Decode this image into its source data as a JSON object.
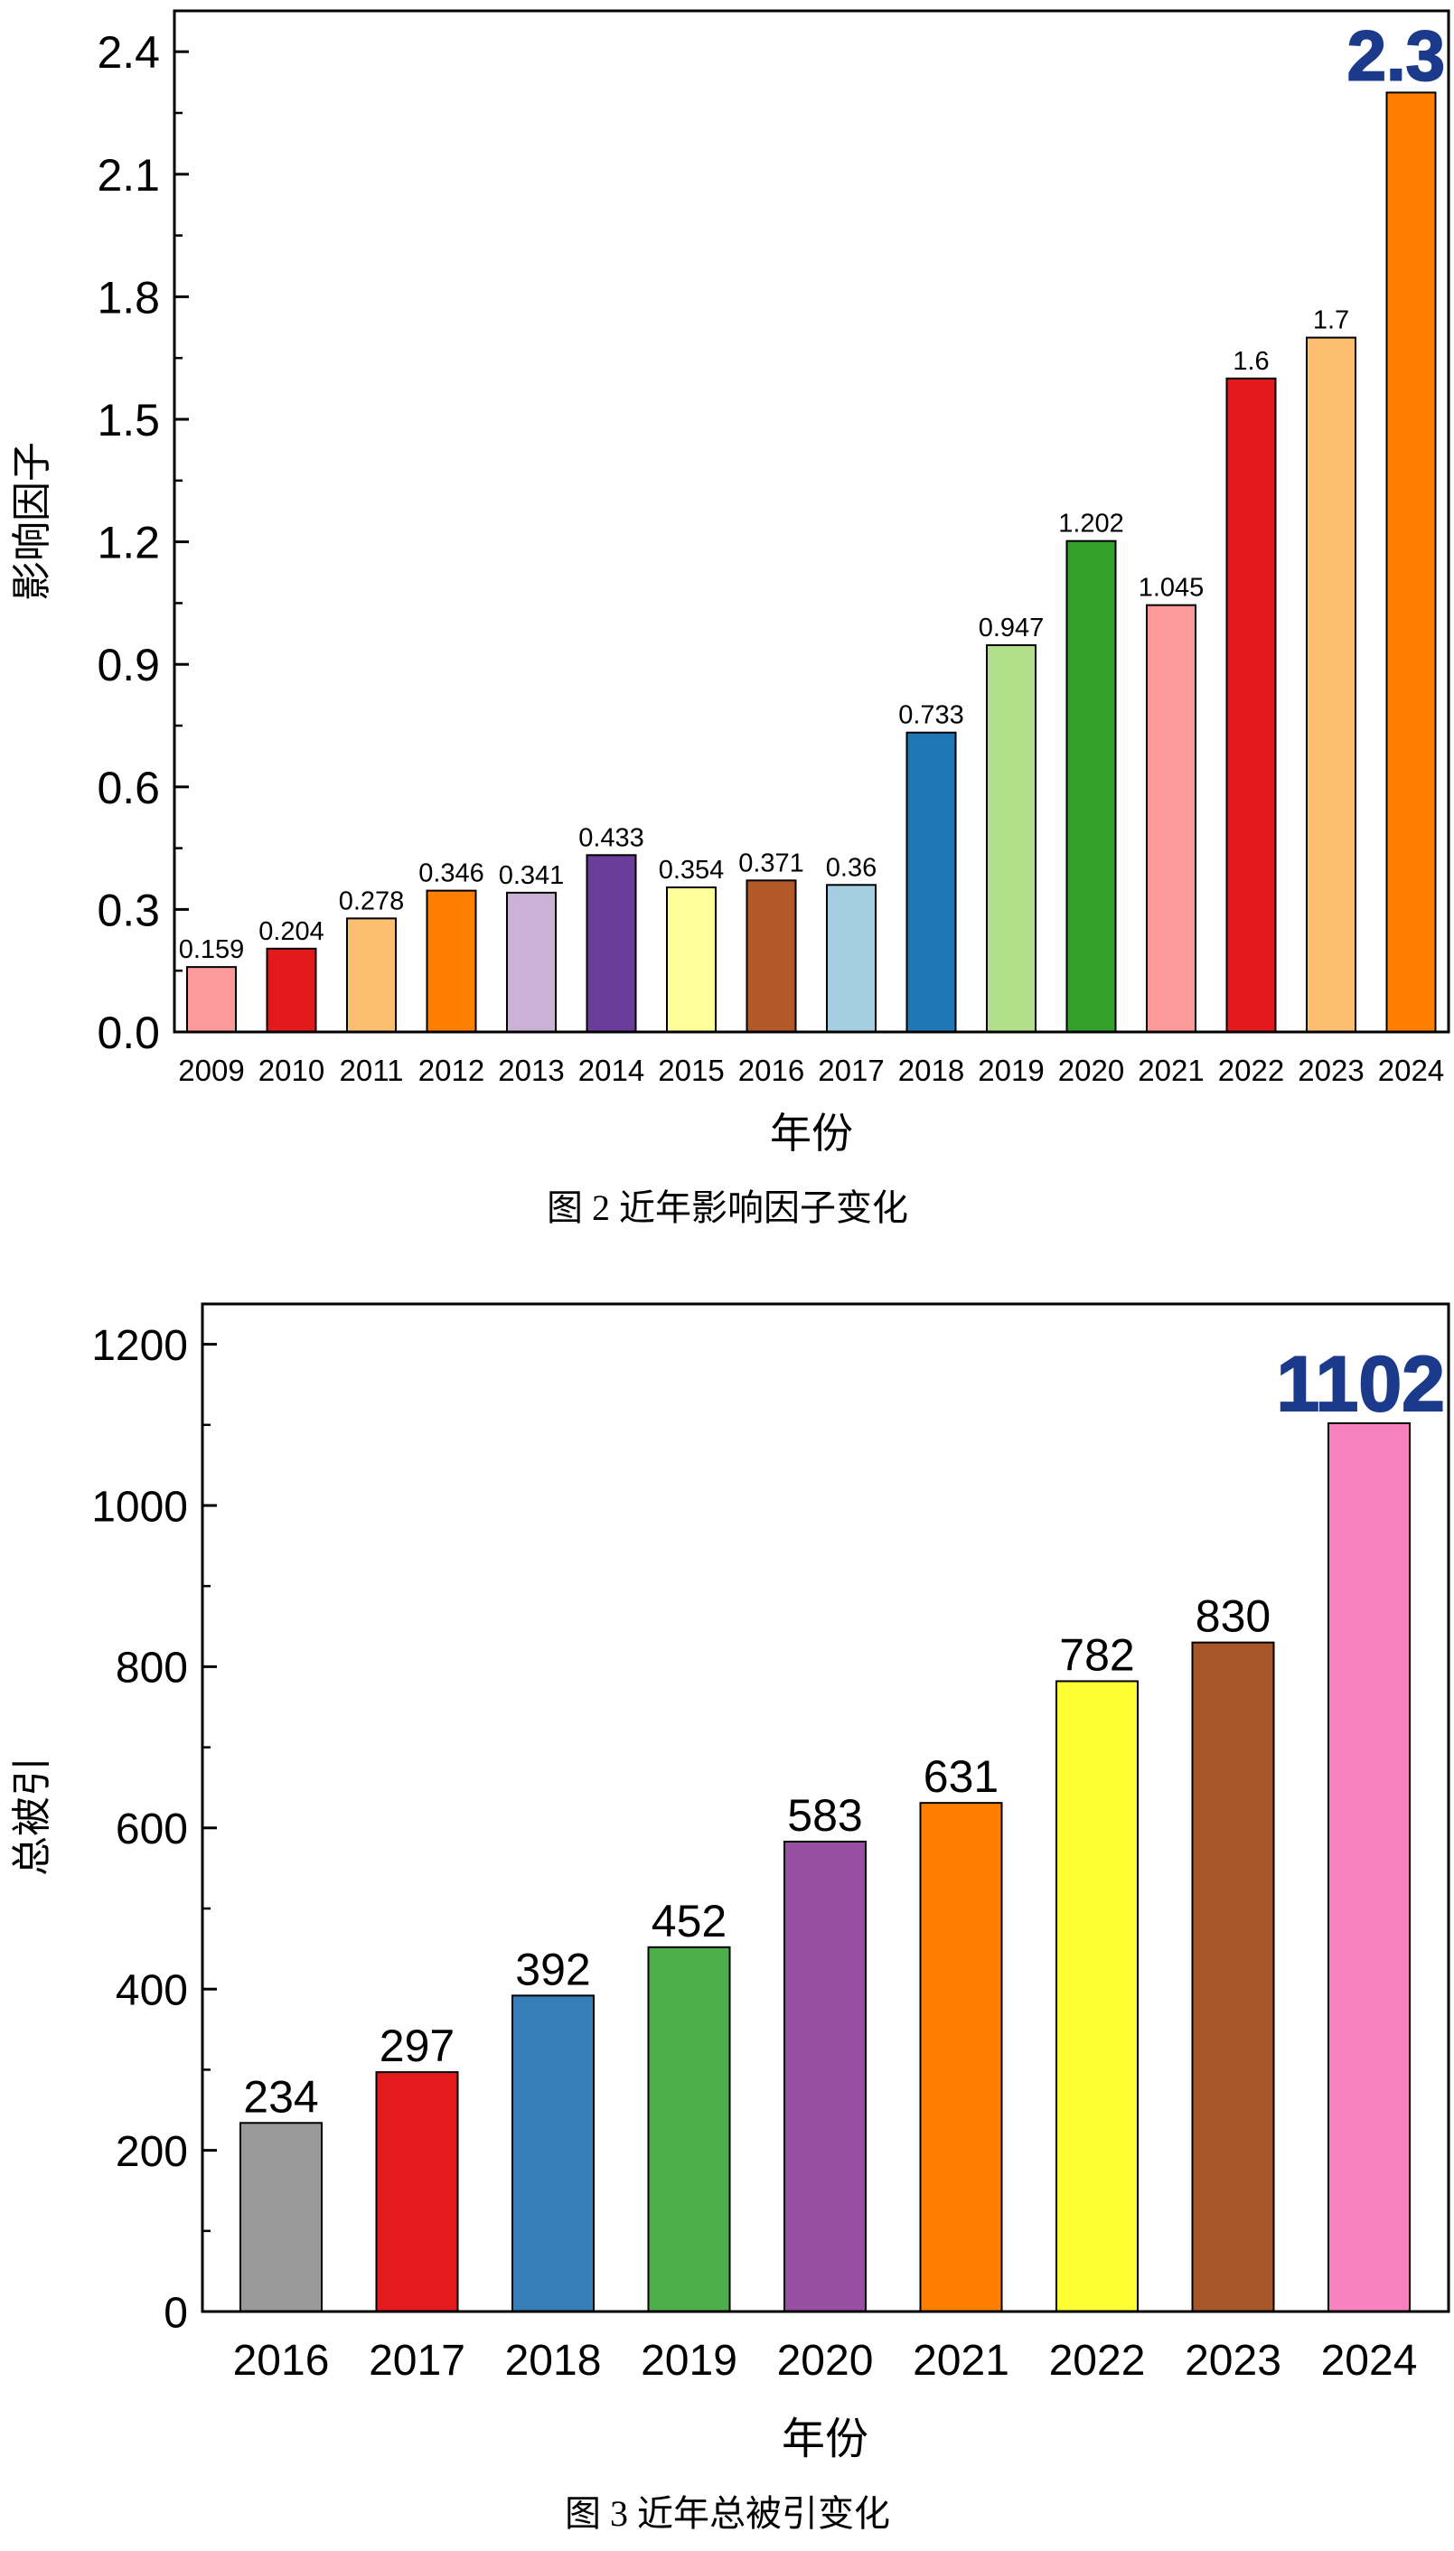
{
  "chart_data": [
    {
      "type": "bar",
      "caption": "图 2 近年影响因子变化",
      "title": "",
      "xlabel": "年份",
      "ylabel": "影响因子",
      "ylim": [
        0,
        2.5
      ],
      "yticks": [
        0.0,
        0.3,
        0.6,
        0.9,
        1.2,
        1.5,
        1.8,
        2.1,
        2.4
      ],
      "ytick_labels": [
        "0.0",
        "0.3",
        "0.6",
        "0.9",
        "1.2",
        "1.5",
        "1.8",
        "2.1",
        "2.4"
      ],
      "categories": [
        "2009",
        "2010",
        "2011",
        "2012",
        "2013",
        "2014",
        "2015",
        "2016",
        "2017",
        "2018",
        "2019",
        "2020",
        "2021",
        "2022",
        "2023",
        "2024"
      ],
      "values": [
        0.159,
        0.204,
        0.278,
        0.346,
        0.341,
        0.433,
        0.354,
        0.371,
        0.36,
        0.733,
        0.947,
        1.202,
        1.045,
        1.6,
        1.7,
        2.3
      ],
      "data_labels": [
        "0.159",
        "0.204",
        "0.278",
        "0.346",
        "0.341",
        "0.433",
        "0.354",
        "0.371",
        "0.36",
        "0.733",
        "0.947",
        "1.202",
        "1.045",
        "1.6",
        "1.7",
        "2.3"
      ],
      "colors": [
        "#fb9a99",
        "#e31a1c",
        "#fdbf6f",
        "#ff7f00",
        "#cab2d6",
        "#6a3d9a",
        "#ffff99",
        "#b15928",
        "#a6cee3",
        "#1f78b4",
        "#b2df8a",
        "#33a02c",
        "#fb9a99",
        "#e31a1c",
        "#fdbf6f",
        "#ff7f00"
      ],
      "highlight_index": 15,
      "highlight_color": "#1c3a8c",
      "grid": false
    },
    {
      "type": "bar",
      "caption": "图 3 近年总被引变化",
      "title": "",
      "xlabel": "年份",
      "ylabel": "总被引",
      "ylim": [
        0,
        1250
      ],
      "yticks": [
        0,
        200,
        400,
        600,
        800,
        1000,
        1200
      ],
      "ytick_labels": [
        "0",
        "200",
        "400",
        "600",
        "800",
        "1000",
        "1200"
      ],
      "categories": [
        "2016",
        "2017",
        "2018",
        "2019",
        "2020",
        "2021",
        "2022",
        "2023",
        "2024"
      ],
      "values": [
        234,
        297,
        392,
        452,
        583,
        631,
        782,
        830,
        1102
      ],
      "data_labels": [
        "234",
        "297",
        "392",
        "452",
        "583",
        "631",
        "782",
        "830",
        "1102"
      ],
      "colors": [
        "#999999",
        "#e41a1c",
        "#377eb8",
        "#4daf4a",
        "#984ea3",
        "#ff7f00",
        "#ffff33",
        "#a65628",
        "#f781bf"
      ],
      "highlight_index": 8,
      "highlight_color": "#1c3a8c",
      "grid": false
    }
  ]
}
